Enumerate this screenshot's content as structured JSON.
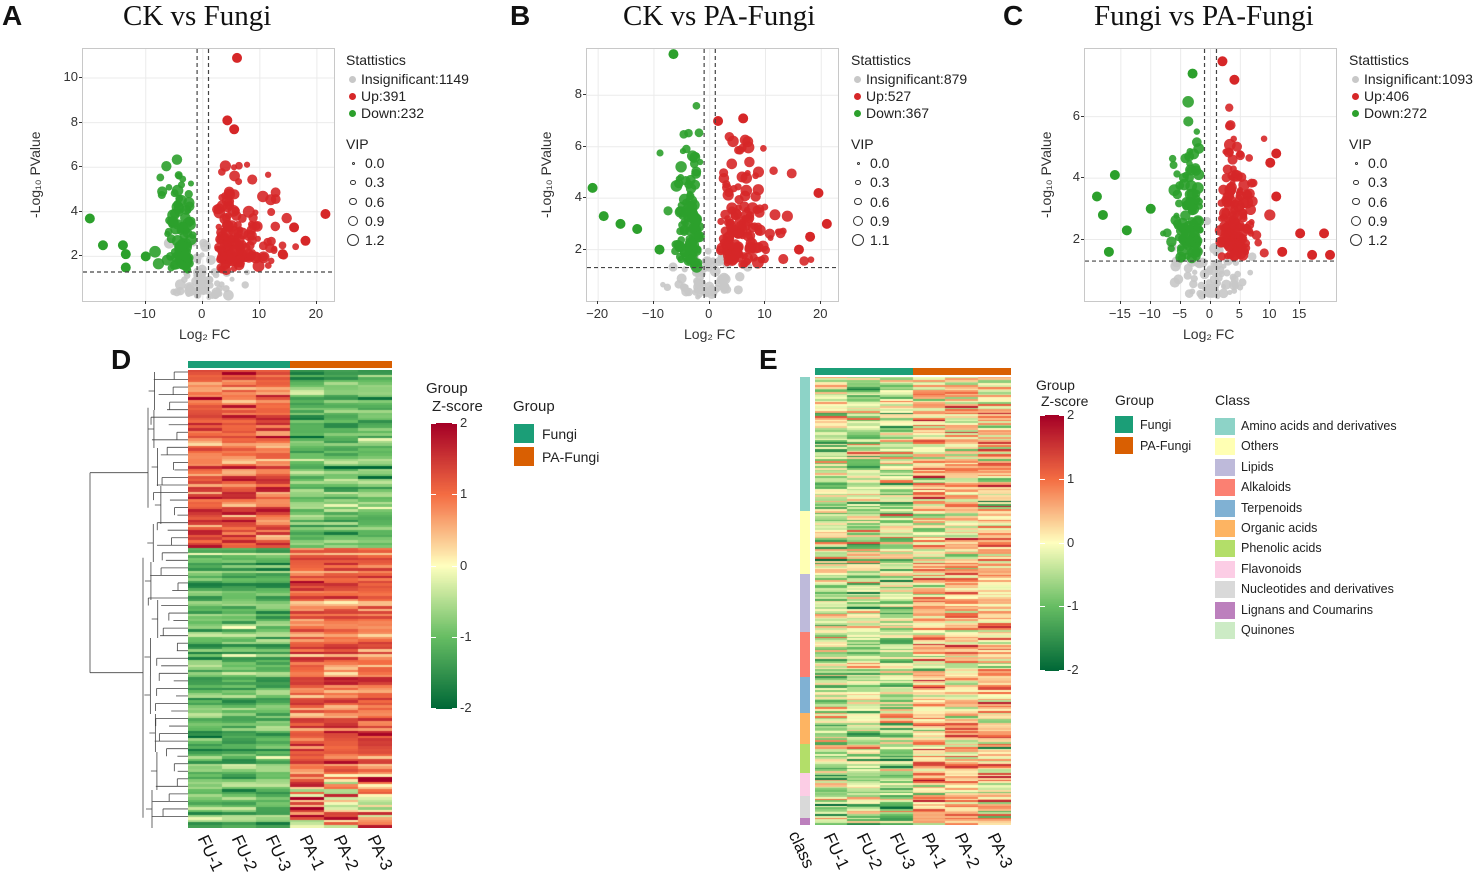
{
  "panels": {
    "A": {
      "letter": "A",
      "title": "CK vs Fungi"
    },
    "B": {
      "letter": "B",
      "title": "CK vs PA-Fungi"
    },
    "C": {
      "letter": "C",
      "title": "Fungi vs PA-Fungi"
    },
    "D": {
      "letter": "D"
    },
    "E": {
      "letter": "E"
    }
  },
  "colors": {
    "up": "#d62728",
    "down": "#2ca02c",
    "insig": "#c8c8c8",
    "fungi": "#1b9e77",
    "pa_fungi": "#d95f02"
  },
  "chart_data": [
    {
      "type": "scatter",
      "subtype": "volcano",
      "title": "CK vs Fungi",
      "xlabel": "Log₂ FC",
      "ylabel": "-Log₁₀ PValue",
      "xlim": [
        -21,
        23
      ],
      "ylim": [
        0,
        11.3
      ],
      "xticks": [
        "−10",
        "0",
        "10",
        "20"
      ],
      "xtick_values": [
        -10,
        0,
        10,
        20
      ],
      "yticks": [
        "2",
        "4",
        "6",
        "8",
        "10"
      ],
      "ytick_values": [
        2,
        4,
        6,
        8,
        10
      ],
      "vlines": [
        -1,
        1
      ],
      "hline": 1.3,
      "legend": {
        "title": "Stattistics",
        "entries": [
          "Insignificant:1149",
          "Up:391",
          "Down:232"
        ],
        "vip_title": "VIP",
        "vip_entries": [
          "0.0",
          "0.3",
          "0.6",
          "0.9",
          "1.2"
        ]
      },
      "counts": {
        "insignificant": 1149,
        "up": 391,
        "down": 232
      },
      "outliers": {
        "up": [
          [
            6,
            10.9
          ],
          [
            4.3,
            8.1
          ],
          [
            5.5,
            7.7
          ],
          [
            16,
            3.3
          ],
          [
            18,
            2.7
          ],
          [
            21.5,
            3.9
          ],
          [
            14,
            2.1
          ]
        ],
        "down": [
          [
            -19.8,
            3.7
          ],
          [
            -17.5,
            2.5
          ],
          [
            -14,
            2.5
          ],
          [
            -13.5,
            2.1
          ],
          [
            -10,
            2.0
          ],
          [
            -13.5,
            1.5
          ]
        ]
      }
    },
    {
      "type": "scatter",
      "subtype": "volcano",
      "title": "CK vs PA-Fungi",
      "xlabel": "Log₂ FC",
      "ylabel": "-Log₁₀ PValue",
      "xlim": [
        -22,
        23
      ],
      "ylim": [
        0,
        9.8
      ],
      "xticks": [
        "−20",
        "−10",
        "0",
        "10",
        "20"
      ],
      "xtick_values": [
        -20,
        -10,
        0,
        10,
        20
      ],
      "yticks": [
        "2",
        "4",
        "6",
        "8"
      ],
      "ytick_values": [
        2,
        4,
        6,
        8
      ],
      "vlines": [
        -1,
        1
      ],
      "hline": 1.3,
      "legend": {
        "title": "Stattistics",
        "entries": [
          "Insignificant:879",
          "Up:527",
          "Down:367"
        ],
        "vip_title": "VIP",
        "vip_entries": [
          "0.0",
          "0.3",
          "0.6",
          "0.9",
          "1.1"
        ]
      },
      "counts": {
        "insignificant": 879,
        "up": 527,
        "down": 367
      },
      "outliers": {
        "up": [
          [
            1.5,
            7.0
          ],
          [
            6,
            7.1
          ],
          [
            19.5,
            4.2
          ],
          [
            21,
            3.0
          ],
          [
            18,
            2.5
          ],
          [
            16,
            2.0
          ]
        ],
        "down": [
          [
            -6.5,
            9.6
          ],
          [
            -21,
            4.4
          ],
          [
            -19,
            3.3
          ],
          [
            -16,
            3.0
          ],
          [
            -13,
            2.8
          ],
          [
            -9,
            2.0
          ]
        ]
      }
    },
    {
      "type": "scatter",
      "subtype": "volcano",
      "title": "Fungi vs PA-Fungi",
      "xlabel": "Log₂ FC",
      "ylabel": "-Log₁₀ PValue",
      "xlim": [
        -21,
        21
      ],
      "ylim": [
        0,
        8.2
      ],
      "xticks": [
        "−15",
        "−10",
        "−5",
        "0",
        "5",
        "10",
        "15"
      ],
      "xtick_values": [
        -15,
        -10,
        -5,
        0,
        5,
        10,
        15
      ],
      "yticks": [
        "2",
        "4",
        "6"
      ],
      "ytick_values": [
        2,
        4,
        6
      ],
      "vlines": [
        -1,
        1
      ],
      "hline": 1.3,
      "legend": {
        "title": "Stattistics",
        "entries": [
          "Insignificant:1093",
          "Up:406",
          "Down:272"
        ],
        "vip_title": "VIP",
        "vip_entries": [
          "0.0",
          "0.3",
          "0.6",
          "0.9",
          "1.2"
        ]
      },
      "counts": {
        "insignificant": 1093,
        "up": 406,
        "down": 272
      },
      "outliers": {
        "up": [
          [
            2,
            7.8
          ],
          [
            4,
            7.2
          ],
          [
            11,
            4.8
          ],
          [
            10,
            4.5
          ],
          [
            11,
            3.4
          ],
          [
            15,
            2.2
          ],
          [
            19,
            2.2
          ],
          [
            20,
            1.5
          ],
          [
            17,
            1.5
          ],
          [
            12,
            1.6
          ]
        ],
        "down": [
          [
            -3,
            7.4
          ],
          [
            -16,
            4.1
          ],
          [
            -19,
            3.4
          ],
          [
            -18,
            2.8
          ],
          [
            -14,
            2.3
          ],
          [
            -10,
            3.0
          ],
          [
            -17,
            1.6
          ]
        ]
      }
    },
    {
      "type": "heatmap",
      "panel": "D",
      "columns": [
        "FU-1",
        "FU-2",
        "FU-3",
        "PA-1",
        "PA-2",
        "PA-3"
      ],
      "column_groups": [
        "Fungi",
        "Fungi",
        "Fungi",
        "PA-Fungi",
        "PA-Fungi",
        "PA-Fungi"
      ],
      "zscore_title_line1": "Group",
      "zscore_title_line2": "Z-score",
      "zscale": [
        "2",
        "1",
        "0",
        "-1",
        "-2"
      ],
      "zscale_values": [
        2,
        1,
        0,
        -1,
        -2
      ],
      "group_legend_title": "Group",
      "group_legend": [
        "Fungi",
        "PA-Fungi"
      ],
      "row_blocks": [
        {
          "pattern": "up_in_fungi",
          "fraction": 0.39
        },
        {
          "pattern": "up_in_pa",
          "fraction": 0.61
        }
      ]
    },
    {
      "type": "heatmap",
      "panel": "E",
      "columns": [
        "FU-1",
        "FU-2",
        "FU-3",
        "PA-1",
        "PA-2",
        "PA-3"
      ],
      "class_label": "class",
      "zscore_title_line1": "Group",
      "zscore_title_line2": "Z-score",
      "zscale": [
        "2",
        "1",
        "0",
        "-1",
        "-2"
      ],
      "zscale_values": [
        2,
        1,
        0,
        -1,
        -2
      ],
      "group_legend_title": "Group",
      "group_legend": [
        "Fungi",
        "PA-Fungi"
      ],
      "class_legend_title": "Class",
      "classes": [
        {
          "name": "Amino acids and derivatives",
          "color": "#8dd3c7",
          "fraction": 0.3
        },
        {
          "name": "Others",
          "color": "#ffffb3",
          "fraction": 0.14
        },
        {
          "name": "Lipids",
          "color": "#bebada",
          "fraction": 0.13
        },
        {
          "name": "Alkaloids",
          "color": "#fb8072",
          "fraction": 0.1
        },
        {
          "name": "Terpenoids",
          "color": "#80b1d3",
          "fraction": 0.08
        },
        {
          "name": "Organic acids",
          "color": "#fdb462",
          "fraction": 0.07
        },
        {
          "name": "Phenolic acids",
          "color": "#b3de69",
          "fraction": 0.065
        },
        {
          "name": "Flavonoids",
          "color": "#fccde5",
          "fraction": 0.05
        },
        {
          "name": "Nucleotides and derivatives",
          "color": "#d9d9d9",
          "fraction": 0.05
        },
        {
          "name": "Lignans and Coumarins",
          "color": "#bc80bd",
          "fraction": 0.015
        },
        {
          "name": "Quinones",
          "color": "#ccebc5",
          "fraction": 0.0
        }
      ]
    }
  ]
}
